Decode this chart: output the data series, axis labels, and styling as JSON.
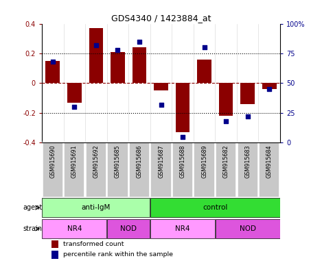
{
  "title": "GDS4340 / 1423884_at",
  "samples": [
    "GSM915690",
    "GSM915691",
    "GSM915692",
    "GSM915685",
    "GSM915686",
    "GSM915687",
    "GSM915688",
    "GSM915689",
    "GSM915682",
    "GSM915683",
    "GSM915684"
  ],
  "bar_values": [
    0.15,
    -0.13,
    0.37,
    0.21,
    0.24,
    -0.05,
    -0.33,
    0.16,
    -0.22,
    -0.14,
    -0.04
  ],
  "percentile_values": [
    68,
    30,
    82,
    78,
    85,
    32,
    5,
    80,
    18,
    22,
    45
  ],
  "bar_color": "#8B0000",
  "dot_color": "#00008B",
  "ylim_left": [
    -0.4,
    0.4
  ],
  "ylim_right": [
    0,
    100
  ],
  "yticks_left": [
    -0.4,
    -0.2,
    0.0,
    0.2,
    0.4
  ],
  "yticks_right": [
    0,
    25,
    50,
    75,
    100
  ],
  "ytick_labels_right": [
    "0",
    "25",
    "50",
    "75",
    "100%"
  ],
  "hlines": [
    -0.2,
    0.0,
    0.2
  ],
  "hline_styles": [
    "dotted",
    "dashed",
    "dotted"
  ],
  "agent_groups": [
    {
      "label": "anti-IgM",
      "start": 0,
      "end": 5,
      "color": "#AAFFAA"
    },
    {
      "label": "control",
      "start": 5,
      "end": 11,
      "color": "#33DD33"
    }
  ],
  "strain_groups": [
    {
      "label": "NR4",
      "start": 0,
      "end": 3,
      "color": "#FF99FF"
    },
    {
      "label": "NOD",
      "start": 3,
      "end": 5,
      "color": "#DD55DD"
    },
    {
      "label": "NR4",
      "start": 5,
      "end": 8,
      "color": "#FF99FF"
    },
    {
      "label": "NOD",
      "start": 8,
      "end": 11,
      "color": "#DD55DD"
    }
  ],
  "legend_bar_label": "transformed count",
  "legend_dot_label": "percentile rank within the sample",
  "agent_label": "agent",
  "strain_label": "strain",
  "bar_width": 0.65,
  "label_box_color": "#C8C8C8",
  "fig_width": 4.69,
  "fig_height": 3.84,
  "fig_dpi": 100
}
